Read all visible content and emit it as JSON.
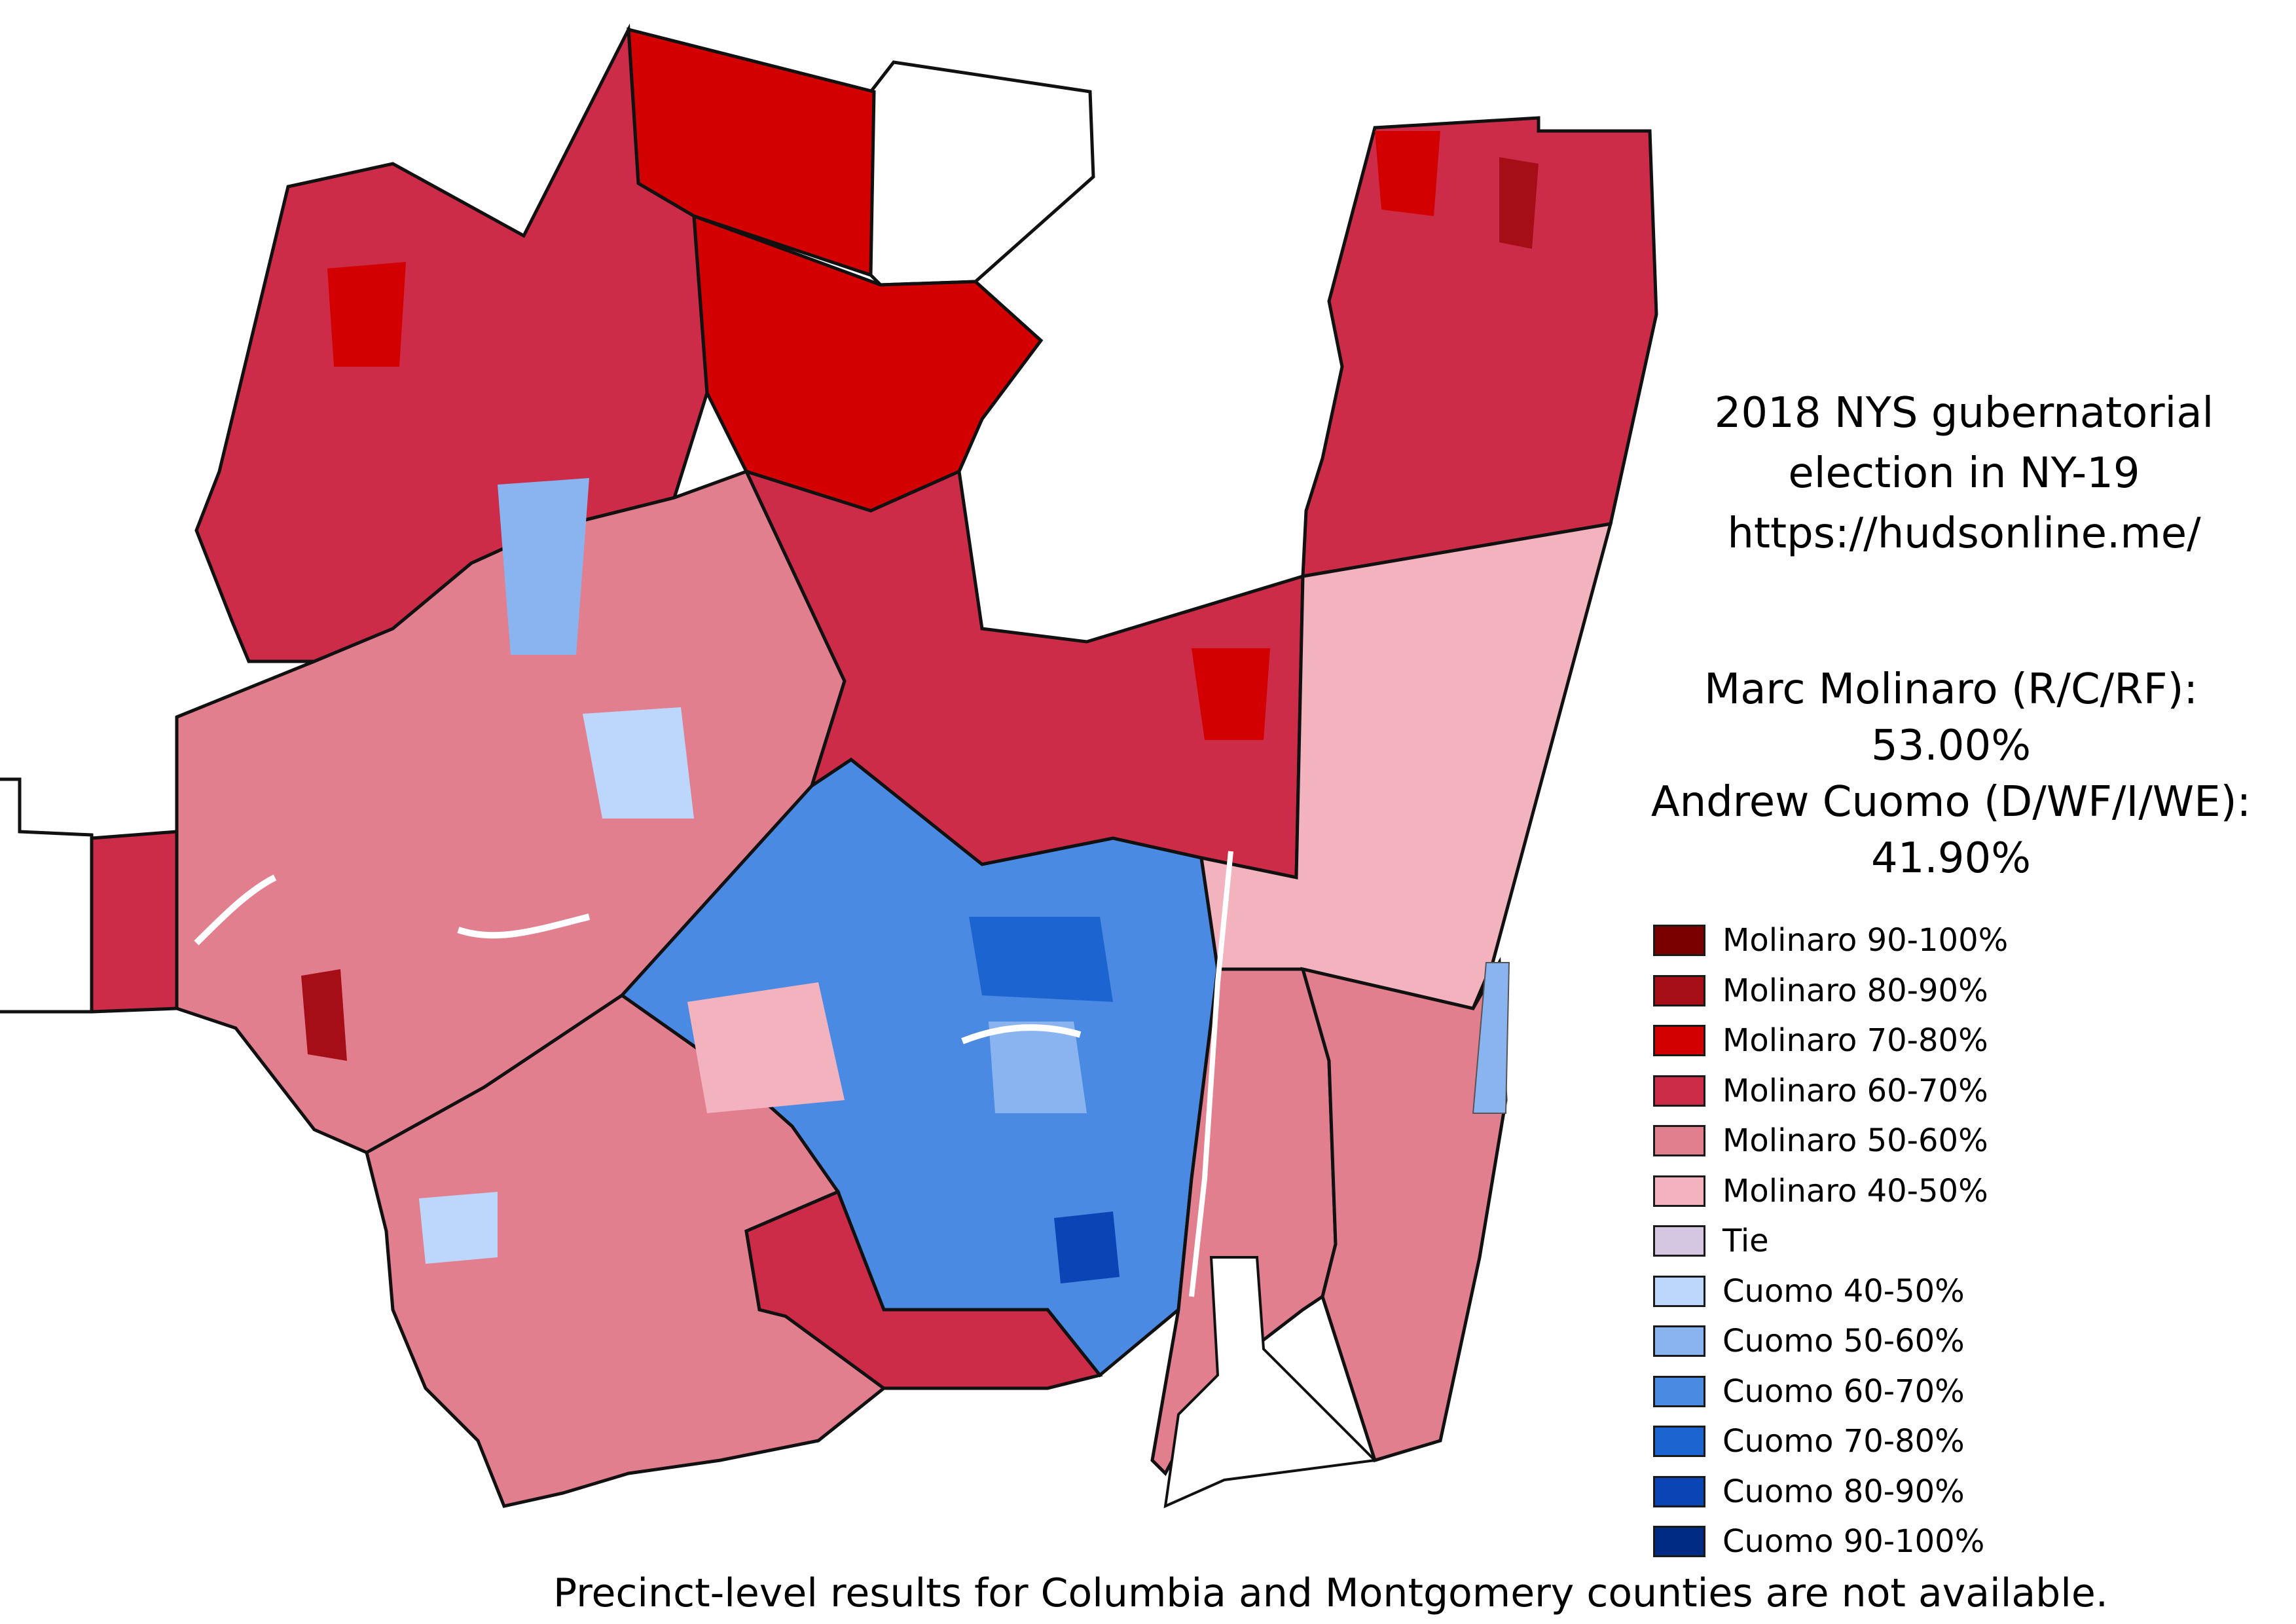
{
  "title": {
    "line1": "2018 NYS gubernatorial",
    "line2": "election in NY-19",
    "line3": "https://hudsonline.me/"
  },
  "results": {
    "candidate1_name": "Marc Molinaro (R/C/RF):",
    "candidate1_pct": "53.00%",
    "candidate2_name": "Andrew Cuomo (D/WF/I/WE):",
    "candidate2_pct": "41.90%"
  },
  "legend": [
    {
      "label": "Molinaro 90-100%",
      "color": "#7a0000"
    },
    {
      "label": "Molinaro 80-90%",
      "color": "#a50d17"
    },
    {
      "label": "Molinaro 70-80%",
      "color": "#d20000"
    },
    {
      "label": "Molinaro 60-70%",
      "color": "#cc2c48"
    },
    {
      "label": "Molinaro 50-60%",
      "color": "#e27f8e"
    },
    {
      "label": "Molinaro 40-50%",
      "color": "#f2b3be"
    },
    {
      "label": "Tie",
      "color": "#d5c7e2"
    },
    {
      "label": "Cuomo 40-50%",
      "color": "#bdd6fb"
    },
    {
      "label": "Cuomo 50-60%",
      "color": "#8ab4f0"
    },
    {
      "label": "Cuomo 60-70%",
      "color": "#4a8ae2"
    },
    {
      "label": "Cuomo 70-80%",
      "color": "#1c64d0"
    },
    {
      "label": "Cuomo 80-90%",
      "color": "#0b45b5"
    },
    {
      "label": "Cuomo 90-100%",
      "color": "#002b84"
    }
  ],
  "footnote": "Precinct-level results for Columbia and Montgomery counties are not available."
}
